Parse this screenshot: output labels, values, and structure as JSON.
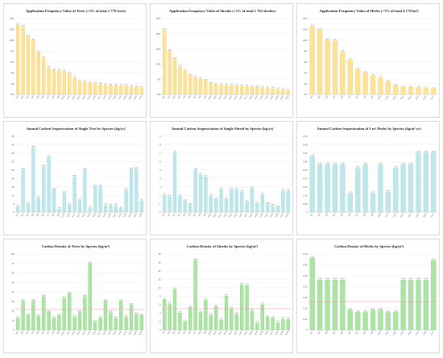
{
  "colors": {
    "yellow_fill": "#fde29a",
    "yellow_stroke": "#f1c24a",
    "cyan_fill": "#bfe6ea",
    "cyan_stroke": "#8fd0d6",
    "green_fill": "#aee3a6",
    "green_stroke": "#6fc46a",
    "mean_line": "#f4a3b4"
  },
  "chart_data": [
    {
      "type": "bar",
      "title": "Application Frequency Value of Trees (>1% of total 1 779 trees)",
      "color": "yellow",
      "ylim": [
        0,
        14
      ],
      "yticks": [
        0,
        2,
        4,
        6,
        8,
        10,
        12,
        14
      ],
      "tick_suffix": "%",
      "categories": [
        "Sp1",
        "Sp2",
        "Sp3",
        "Sp4",
        "Sp5",
        "Sp6",
        "Sp7",
        "Sp8",
        "Sp9",
        "Sp10",
        "Sp11",
        "Sp12",
        "Sp13",
        "Sp14",
        "Sp15",
        "Sp16",
        "Sp17",
        "Sp18",
        "Sp19",
        "Sp20",
        "Sp21",
        "Sp22",
        "Sp23",
        "Sp24",
        "Sp25"
      ],
      "values": [
        12.7,
        12.4,
        10.6,
        9.9,
        7.7,
        6.6,
        4.9,
        4.4,
        4.3,
        4.2,
        3.8,
        2.9,
        2.4,
        2.2,
        2.0,
        1.9,
        1.8,
        1.7,
        1.6,
        1.6,
        1.5,
        1.5,
        1.4,
        1.3,
        1.2
      ],
      "show_labels": true
    },
    {
      "type": "bar",
      "title": "Application Frequency Value of Shrubs (>1% of total 1 702 shrubs)",
      "color": "yellow",
      "ylim": [
        0,
        25
      ],
      "yticks": [
        0,
        5,
        10,
        15,
        20,
        25
      ],
      "tick_suffix": "%",
      "categories": [
        "Sp1",
        "Sp2",
        "Sp3",
        "Sp4",
        "Sp5",
        "Sp6",
        "Sp7",
        "Sp8",
        "Sp9",
        "Sp10",
        "Sp11",
        "Sp12",
        "Sp13",
        "Sp14",
        "Sp15",
        "Sp16",
        "Sp17",
        "Sp18",
        "Sp19",
        "Sp20",
        "Sp21",
        "Sp22",
        "Sp23",
        "Sp24",
        "Sp25"
      ],
      "values": [
        21.0,
        14.2,
        11.5,
        8.9,
        7.6,
        6.3,
        5.4,
        5.0,
        4.4,
        3.5,
        3.1,
        3.0,
        2.9,
        2.9,
        2.6,
        2.6,
        2.5,
        2.3,
        2.3,
        2.0,
        1.9,
        1.8,
        1.6,
        1.4,
        1.1
      ],
      "show_labels": true
    },
    {
      "type": "bar",
      "title": "Application Frequency Value of Herbs (>1% of total 4 1735m²)",
      "color": "yellow",
      "ylim": [
        0,
        14
      ],
      "yticks": [
        0,
        2,
        4,
        6,
        8,
        10,
        12,
        14
      ],
      "tick_suffix": "%",
      "categories": [
        "Sp1",
        "Sp2",
        "Sp3",
        "Sp4",
        "Sp5",
        "Sp6",
        "Sp7",
        "Sp8",
        "Sp9",
        "Sp10",
        "Sp11",
        "Sp12",
        "Sp13",
        "Sp14",
        "Sp15",
        "Sp16",
        "Sp17"
      ],
      "values": [
        12.5,
        11.8,
        10.0,
        9.8,
        7.8,
        6.3,
        4.5,
        3.9,
        3.4,
        2.9,
        2.3,
        1.6,
        1.3,
        1.3,
        1.2,
        1.1,
        1.0
      ],
      "show_labels": true
    },
    {
      "type": "bar",
      "title": "Annual Carbon Sequestration of Single Tree by Species (kg/yr)",
      "color": "cyan",
      "ylim": [
        0,
        45
      ],
      "yticks": [
        0,
        5,
        10,
        15,
        20,
        25,
        30,
        35,
        40,
        45
      ],
      "tick_suffix": "",
      "categories": [
        "Sp1",
        "Sp2",
        "Sp3",
        "Sp4",
        "Sp5",
        "Sp6",
        "Sp7",
        "Sp8",
        "Sp9",
        "Sp10",
        "Sp11",
        "Sp12",
        "Sp13",
        "Sp14",
        "Sp15",
        "Sp16",
        "Sp17",
        "Sp18",
        "Sp19",
        "Sp20",
        "Sp21",
        "Sp22",
        "Sp23",
        "Sp24",
        "Sp25"
      ],
      "values": [
        3.1,
        24.8,
        4.7,
        38.0,
        8.2,
        26.8,
        32.3,
        13.0,
        1.8,
        11.2,
        4.1,
        20.8,
        6.9,
        24.8,
        2.4,
        15.1,
        14.9,
        3.8,
        3.6,
        3.8,
        2.2,
        12.9,
        25.2,
        25.4,
        6.7
      ],
      "show_labels": true
    },
    {
      "type": "bar",
      "title": "Annual Carbon Sequestration of Single Shrub by Species (kg/yr)",
      "color": "cyan",
      "ylim": [
        0,
        9
      ],
      "yticks": [
        0,
        1,
        2,
        3,
        4,
        5,
        6,
        7,
        8,
        9
      ],
      "tick_suffix": "",
      "categories": [
        "Sp1",
        "Sp2",
        "Sp3",
        "Sp4",
        "Sp5",
        "Sp6",
        "Sp7",
        "Sp8",
        "Sp9",
        "Sp10",
        "Sp11",
        "Sp12",
        "Sp13",
        "Sp14",
        "Sp15",
        "Sp16",
        "Sp17",
        "Sp18",
        "Sp19",
        "Sp20",
        "Sp21",
        "Sp22",
        "Sp23",
        "Sp24",
        "Sp25"
      ],
      "values": [
        2.0,
        1.8,
        7.1,
        1.9,
        1.3,
        0.8,
        5.0,
        4.4,
        4.2,
        1.9,
        1.5,
        2.7,
        1.5,
        2.7,
        2.7,
        2.4,
        1.2,
        2.8,
        1.0,
        2.1,
        0.9,
        0.7,
        0.5,
        2.5,
        2.5
      ],
      "show_labels": true
    },
    {
      "type": "bar",
      "title": "Annual Carbon Sequestration of 1 m² Herbs by Species (kg/m² yr)",
      "color": "cyan",
      "ylim": [
        0,
        0.45
      ],
      "yticks": [
        0,
        0.05,
        0.1,
        0.15,
        0.2,
        0.25,
        0.3,
        0.35,
        0.4,
        0.45
      ],
      "tick_suffix": "",
      "categories": [
        "Sp1",
        "Sp2",
        "Sp3",
        "Sp4",
        "Sp5",
        "Sp6",
        "Sp7",
        "Sp8",
        "Sp9",
        "Sp10",
        "Sp11",
        "Sp12",
        "Sp13",
        "Sp14",
        "Sp15",
        "Sp16",
        "Sp17"
      ],
      "values": [
        0.33,
        0.28,
        0.28,
        0.28,
        0.28,
        0.11,
        0.26,
        0.28,
        0.11,
        0.28,
        0.12,
        0.26,
        0.28,
        0.28,
        0.35,
        0.35,
        0.35
      ],
      "show_labels": true
    },
    {
      "type": "bar",
      "title": "Carbon Density of Trees by Species (kg/m²)",
      "color": "green",
      "ylim": [
        0,
        80
      ],
      "yticks": [
        0,
        10,
        20,
        30,
        40,
        50,
        60,
        70,
        80
      ],
      "tick_suffix": "",
      "categories": [
        "Sp1",
        "Sp2",
        "Sp3",
        "Sp4",
        "Sp5",
        "Sp6",
        "Sp7",
        "Sp8",
        "Sp9",
        "Sp10",
        "Sp11",
        "Sp12",
        "Sp13",
        "Sp14",
        "Sp15",
        "Sp16",
        "Sp17",
        "Sp18",
        "Sp19",
        "Sp20",
        "Sp21",
        "Sp22",
        "Sp23",
        "Sp24",
        "Sp25"
      ],
      "values": [
        12.0,
        30.0,
        15.0,
        30.0,
        14.0,
        35.0,
        18.5,
        12.0,
        15.0,
        33.0,
        38.0,
        13.0,
        18.0,
        35.0,
        70.0,
        8.0,
        12.0,
        30.0,
        18.0,
        12.0,
        30.0,
        13.0,
        26.0,
        16.0,
        15.0
      ],
      "mean": 21.5,
      "show_labels": true
    },
    {
      "type": "bar",
      "title": "Carbon Density of Shrubs by Species (kg/m²)",
      "color": "green",
      "ylim": [
        0,
        18
      ],
      "yticks": [
        0,
        2,
        4,
        6,
        8,
        10,
        12,
        14,
        16,
        18
      ],
      "tick_suffix": "",
      "categories": [
        "Sp1",
        "Sp2",
        "Sp3",
        "Sp4",
        "Sp5",
        "Sp6",
        "Sp7",
        "Sp8",
        "Sp9",
        "Sp10",
        "Sp11",
        "Sp12",
        "Sp13",
        "Sp14",
        "Sp15",
        "Sp16",
        "Sp17",
        "Sp18",
        "Sp19",
        "Sp20",
        "Sp21",
        "Sp22",
        "Sp23",
        "Sp24",
        "Sp25"
      ],
      "values": [
        7.2,
        6.0,
        9.5,
        4.0,
        1.9,
        5.3,
        16.5,
        4.1,
        7.1,
        3.5,
        5.5,
        2.3,
        8.0,
        5.0,
        3.7,
        10.7,
        10.5,
        4.5,
        1.6,
        6.0,
        3.0,
        2.8,
        1.7,
        2.5,
        2.5
      ],
      "mean": 5.0,
      "show_labels": true
    },
    {
      "type": "bar",
      "title": "Carbon Density of Herbs by Species (kg/m²)",
      "color": "green",
      "ylim": [
        0,
        0.35
      ],
      "yticks": [
        0,
        0.05,
        0.1,
        0.15,
        0.2,
        0.25,
        0.3,
        0.35
      ],
      "tick_suffix": "",
      "categories": [
        "Sp1",
        "Sp2",
        "Sp3",
        "Sp4",
        "Sp5",
        "Sp6",
        "Sp7",
        "Sp8",
        "Sp9",
        "Sp10",
        "Sp11",
        "Sp12",
        "Sp13",
        "Sp14",
        "Sp15",
        "Sp16",
        "Sp17"
      ],
      "values": [
        0.33,
        0.23,
        0.23,
        0.23,
        0.23,
        0.09,
        0.08,
        0.08,
        0.09,
        0.09,
        0.08,
        0.08,
        0.23,
        0.23,
        0.23,
        0.23,
        0.32
      ],
      "mean": 0.13,
      "show_labels": true
    }
  ]
}
